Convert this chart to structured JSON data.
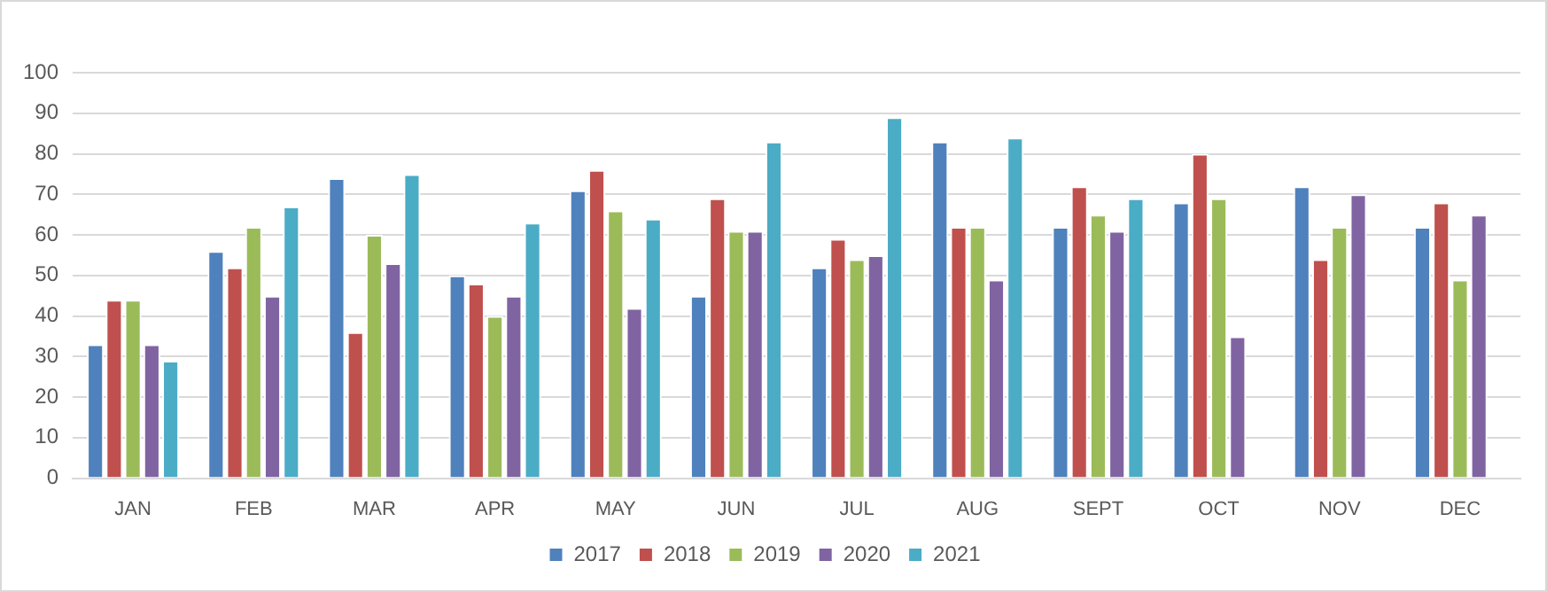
{
  "chart_data": {
    "type": "bar",
    "categories": [
      "JAN",
      "FEB",
      "MAR",
      "APR",
      "MAY",
      "JUN",
      "JUL",
      "AUG",
      "SEPT",
      "OCT",
      "NOV",
      "DEC"
    ],
    "series": [
      {
        "name": "2017",
        "color": "#4f81bd",
        "values": [
          33,
          56,
          74,
          50,
          71,
          45,
          52,
          83,
          62,
          68,
          72,
          62
        ]
      },
      {
        "name": "2018",
        "color": "#c0504d",
        "values": [
          44,
          52,
          36,
          48,
          76,
          69,
          59,
          62,
          72,
          80,
          54,
          68
        ]
      },
      {
        "name": "2019",
        "color": "#9bbb59",
        "values": [
          44,
          62,
          60,
          40,
          66,
          61,
          54,
          62,
          65,
          69,
          62,
          49
        ]
      },
      {
        "name": "2020",
        "color": "#8064a2",
        "values": [
          33,
          45,
          53,
          45,
          42,
          61,
          55,
          49,
          61,
          35,
          70,
          65
        ]
      },
      {
        "name": "2021",
        "color": "#4bacc6",
        "values": [
          29,
          67,
          75,
          63,
          64,
          83,
          89,
          84,
          69,
          null,
          null,
          null
        ]
      }
    ],
    "ylim": [
      0,
      100
    ],
    "yticks": [
      0,
      10,
      20,
      30,
      40,
      50,
      60,
      70,
      80,
      90,
      100
    ],
    "grid": "y",
    "legend": "bottom"
  }
}
